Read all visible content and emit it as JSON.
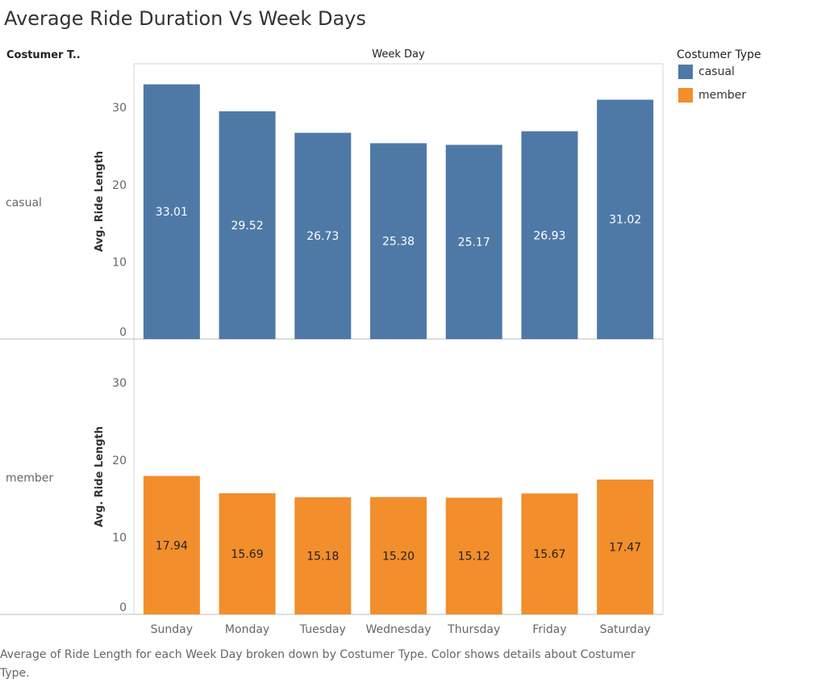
{
  "title": "Average Ride Duration Vs Week Days",
  "row_header": "Costumer T..",
  "column_header": "Week Day",
  "legend": {
    "title": "Costumer Type",
    "items": [
      {
        "label": "casual",
        "color": "#4e79a7"
      },
      {
        "label": "member",
        "color": "#f28e2b"
      }
    ]
  },
  "caption": "Average of Ride Length for each Week Day broken down by Costumer Type.  Color shows details about Costumer Type.",
  "chart_data": {
    "type": "bar",
    "categories": [
      "Sunday",
      "Monday",
      "Tuesday",
      "Wednesday",
      "Thursday",
      "Friday",
      "Saturday"
    ],
    "ylabel": "Avg. Ride Length",
    "ylim": [
      0,
      34
    ],
    "yticks": [
      0,
      10,
      20,
      30
    ],
    "grid": false,
    "legend_position": "top-right",
    "series": [
      {
        "name": "casual",
        "color": "#4e79a7",
        "label_color": "#ffffff",
        "values": [
          33.01,
          29.52,
          26.73,
          25.38,
          25.17,
          26.93,
          31.02
        ],
        "value_labels": [
          "33.01",
          "29.52",
          "26.73",
          "25.38",
          "25.17",
          "26.93",
          "31.02"
        ]
      },
      {
        "name": "member",
        "color": "#f28e2b",
        "label_color": "#222222",
        "values": [
          17.94,
          15.69,
          15.18,
          15.2,
          15.12,
          15.67,
          17.47
        ],
        "value_labels": [
          "17.94",
          "15.69",
          "15.18",
          "15.20",
          "15.12",
          "15.67",
          "17.47"
        ]
      }
    ]
  }
}
